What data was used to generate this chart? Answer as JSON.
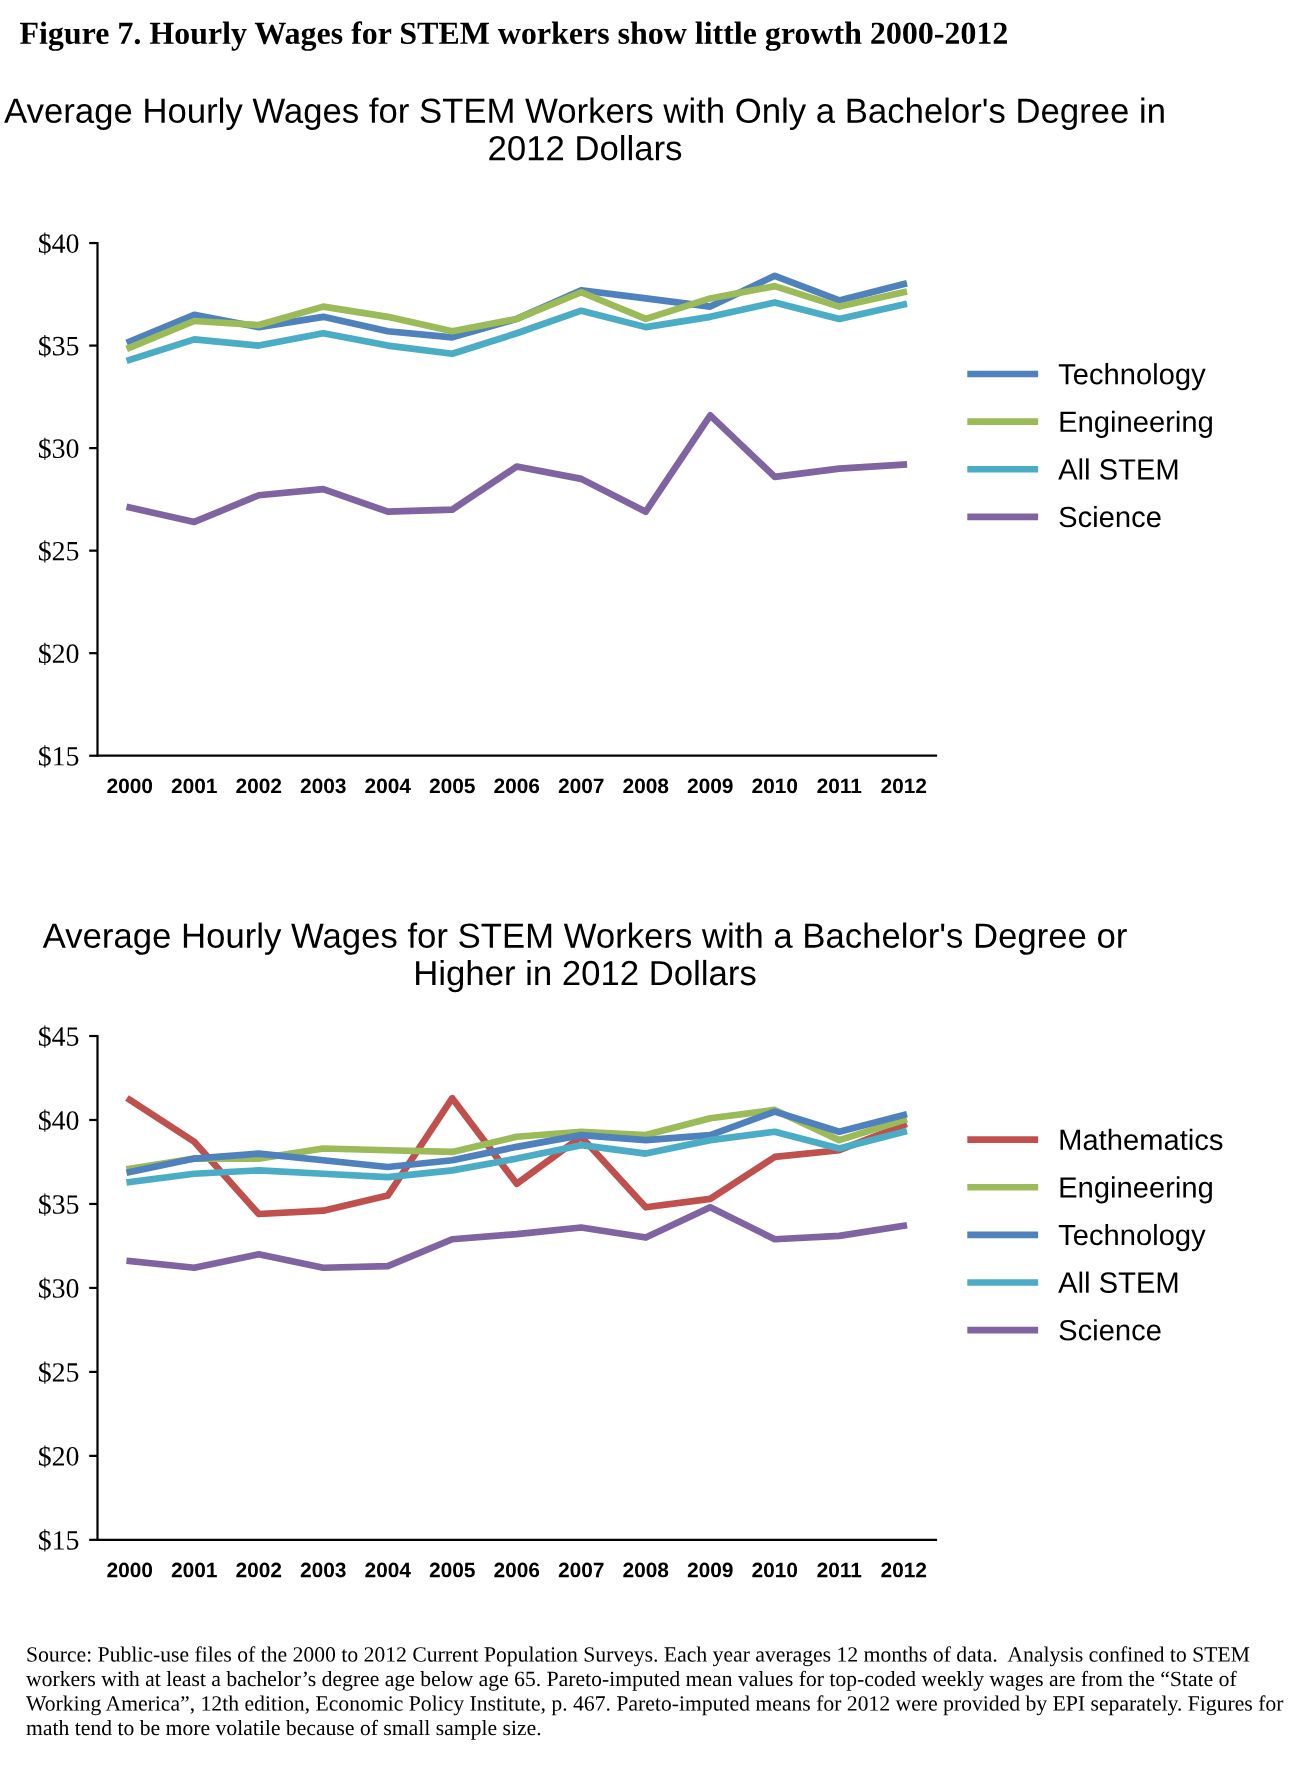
{
  "chart_data": [
    {
      "type": "line",
      "title": "Average Hourly Wages for STEM Workers with Only a Bachelor's Degree in 2012 Dollars",
      "annotations": [
        "Figure 7. Hourly Wages for STEM workers show little growth 2000-2012"
      ],
      "categories": [
        "2000",
        "2001",
        "2002",
        "2003",
        "2004",
        "2005",
        "2006",
        "2007",
        "2008",
        "2009",
        "2010",
        "2011",
        "2012"
      ],
      "ylim": [
        15,
        40
      ],
      "yticks": [
        {
          "value": 15,
          "label": "$15"
        },
        {
          "value": 20,
          "label": "$20"
        },
        {
          "value": 25,
          "label": "$25"
        },
        {
          "value": 30,
          "label": "$30"
        },
        {
          "value": 35,
          "label": "$35"
        },
        {
          "value": 40,
          "label": "$40"
        }
      ],
      "grid": false,
      "legend": "right",
      "marker": "none",
      "line_style": "solid",
      "series": [
        {
          "name": "Technology",
          "color": "#4f81bd",
          "values": [
            35.2,
            36.5,
            35.9,
            36.4,
            35.7,
            35.4,
            36.3,
            37.7,
            37.3,
            36.9,
            38.4,
            37.2,
            38.0
          ]
        },
        {
          "name": "Engineering",
          "color": "#9bbb59",
          "values": [
            34.9,
            36.2,
            36.0,
            36.9,
            36.4,
            35.7,
            36.3,
            37.6,
            36.3,
            37.3,
            37.9,
            36.9,
            37.6
          ]
        },
        {
          "name": "All STEM",
          "color": "#4bacc6",
          "values": [
            34.3,
            35.3,
            35.0,
            35.6,
            35.0,
            34.6,
            35.6,
            36.7,
            35.9,
            36.4,
            37.1,
            36.3,
            37.0
          ]
        },
        {
          "name": "Science",
          "color": "#8064a2",
          "values": [
            27.1,
            26.4,
            27.7,
            28.0,
            26.9,
            27.0,
            29.1,
            28.5,
            26.9,
            31.6,
            28.6,
            29.0,
            29.2
          ]
        }
      ]
    },
    {
      "type": "line",
      "title": "Average Hourly Wages for STEM Workers with a Bachelor's Degree or Higher in 2012 Dollars",
      "annotations": [
        "Source: Public-use files of the 2000 to 2012 Current Population Surveys. Each year averages 12 months of data.  Analysis confined to STEM workers with at least a bachelor’s degree age below age 65. Pareto-imputed mean values for top-coded weekly wages are from the “State of Working America”, 12th edition, Economic Policy Institute, p. 467. Pareto-imputed means for 2012 were provided by EPI separately. Figures for math tend to be more volatile because of small sample size."
      ],
      "categories": [
        "2000",
        "2001",
        "2002",
        "2003",
        "2004",
        "2005",
        "2006",
        "2007",
        "2008",
        "2009",
        "2010",
        "2011",
        "2012"
      ],
      "ylim": [
        15,
        45
      ],
      "yticks": [
        {
          "value": 15,
          "label": "$15"
        },
        {
          "value": 20,
          "label": "$20"
        },
        {
          "value": 25,
          "label": "$25"
        },
        {
          "value": 30,
          "label": "$30"
        },
        {
          "value": 35,
          "label": "$35"
        },
        {
          "value": 40,
          "label": "$40"
        },
        {
          "value": 45,
          "label": "$45"
        }
      ],
      "grid": false,
      "legend": "right",
      "marker": "none",
      "line_style": "solid",
      "series": [
        {
          "name": "Mathematics",
          "color": "#c0504d",
          "values": [
            41.2,
            38.7,
            34.4,
            34.6,
            35.5,
            41.3,
            36.2,
            39.0,
            34.8,
            35.3,
            37.8,
            38.2,
            39.7
          ]
        },
        {
          "name": "Engineering",
          "color": "#9bbb59",
          "values": [
            37.1,
            37.7,
            37.7,
            38.3,
            38.2,
            38.1,
            39.0,
            39.3,
            39.1,
            40.1,
            40.6,
            38.8,
            40.0
          ]
        },
        {
          "name": "Technology",
          "color": "#4f81bd",
          "values": [
            36.9,
            37.7,
            38.0,
            37.6,
            37.2,
            37.6,
            38.4,
            39.1,
            38.8,
            39.1,
            40.5,
            39.3,
            40.3
          ]
        },
        {
          "name": "All STEM",
          "color": "#4bacc6",
          "values": [
            36.3,
            36.8,
            37.0,
            36.8,
            36.6,
            37.0,
            37.7,
            38.5,
            38.0,
            38.8,
            39.3,
            38.3,
            39.3
          ]
        },
        {
          "name": "Science",
          "color": "#8064a2",
          "values": [
            31.6,
            31.2,
            32.0,
            31.2,
            31.3,
            32.9,
            33.2,
            33.6,
            33.0,
            34.8,
            32.9,
            33.1,
            33.7
          ]
        }
      ]
    }
  ]
}
